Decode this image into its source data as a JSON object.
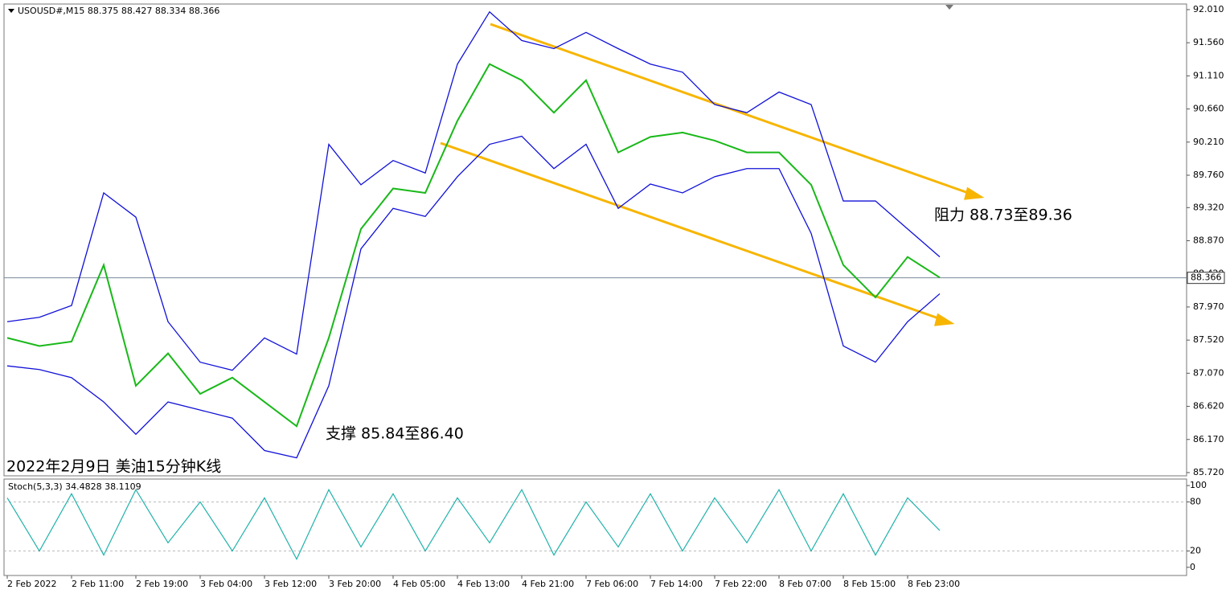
{
  "chart_data": {
    "type": "line",
    "header": "USOUSD#,M15  88.375 88.427 88.334 88.366",
    "title": "2022年2月9日 美油15分钟K线",
    "annotations": [
      "阻力 88.73至89.36",
      "支撑 85.84至86.40"
    ],
    "current_price": 88.366,
    "categories": [
      "2 Feb 2022",
      null,
      "2 Feb 11:00",
      null,
      "2 Feb 19:00",
      null,
      "3 Feb 04:00",
      null,
      "3 Feb 12:00",
      null,
      "3 Feb 20:00",
      null,
      "4 Feb 05:00",
      null,
      "4 Feb 13:00",
      null,
      "4 Feb 21:00",
      null,
      "7 Feb 06:00",
      null,
      "7 Feb 14:00",
      null,
      "7 Feb 22:00",
      null,
      "8 Feb 07:00",
      null,
      "8 Feb 15:00",
      null,
      "8 Feb 23:00",
      null
    ],
    "series": [
      {
        "name": "Price",
        "color": "#19b819",
        "values": [
          87.55,
          87.44,
          87.5,
          88.54,
          86.9,
          87.34,
          86.79,
          87.01,
          86.68,
          86.35,
          87.55,
          89.03,
          89.58,
          89.52,
          90.5,
          91.27,
          91.05,
          90.61,
          91.05,
          90.07,
          90.28,
          90.34,
          90.23,
          90.07,
          90.07,
          89.63,
          88.54,
          88.1,
          88.65,
          88.37
        ]
      },
      {
        "name": "Upper band",
        "color": "#1010d8",
        "values": [
          87.77,
          87.83,
          87.99,
          89.52,
          89.19,
          87.77,
          87.22,
          87.11,
          87.55,
          87.33,
          90.18,
          89.63,
          89.96,
          89.79,
          91.27,
          91.98,
          91.59,
          91.48,
          91.7,
          91.48,
          91.27,
          91.16,
          90.72,
          90.61,
          90.89,
          90.72,
          89.41,
          89.41,
          89.03,
          88.65
        ]
      },
      {
        "name": "Lower band",
        "color": "#1010d8",
        "values": [
          87.17,
          87.12,
          87.01,
          86.68,
          86.24,
          86.68,
          86.57,
          86.46,
          86.02,
          85.92,
          86.9,
          88.76,
          89.31,
          89.2,
          89.74,
          90.18,
          90.29,
          89.85,
          90.18,
          89.31,
          89.64,
          89.52,
          89.74,
          89.85,
          89.85,
          88.97,
          87.44,
          87.22,
          87.77,
          88.15
        ]
      }
    ],
    "ylim": [
      85.676,
      92.086
    ],
    "yticks": [
      {
        "value": 92.01,
        "label": "92.010"
      },
      {
        "value": 91.56,
        "label": "91.560"
      },
      {
        "value": 91.11,
        "label": "91.110"
      },
      {
        "value": 90.66,
        "label": "90.660"
      },
      {
        "value": 90.21,
        "label": "90.210"
      },
      {
        "value": 89.76,
        "label": "89.760"
      },
      {
        "value": 89.32,
        "label": "89.320"
      },
      {
        "value": 88.87,
        "label": "88.870"
      },
      {
        "value": 88.42,
        "label": "88.420"
      },
      {
        "value": 87.97,
        "label": "87.970"
      },
      {
        "value": 87.52,
        "label": "87.520"
      },
      {
        "value": 87.07,
        "label": "87.070"
      },
      {
        "value": 86.62,
        "label": "86.620"
      },
      {
        "value": 86.17,
        "label": "86.170"
      },
      {
        "value": 85.72,
        "label": "85.720"
      }
    ],
    "stoch": {
      "label": "Stoch(5,3,3) 34.4828 38.1109",
      "color": "#20b2aa",
      "values": [
        85,
        20,
        90,
        15,
        95,
        30,
        80,
        20,
        85,
        10,
        95,
        25,
        90,
        20,
        85,
        30,
        95,
        15,
        80,
        25,
        90,
        20,
        85,
        30,
        95,
        20,
        90,
        15,
        85,
        45
      ],
      "ylim": [
        -9,
        107
      ],
      "yticks": [
        100,
        80,
        20,
        0
      ]
    }
  }
}
